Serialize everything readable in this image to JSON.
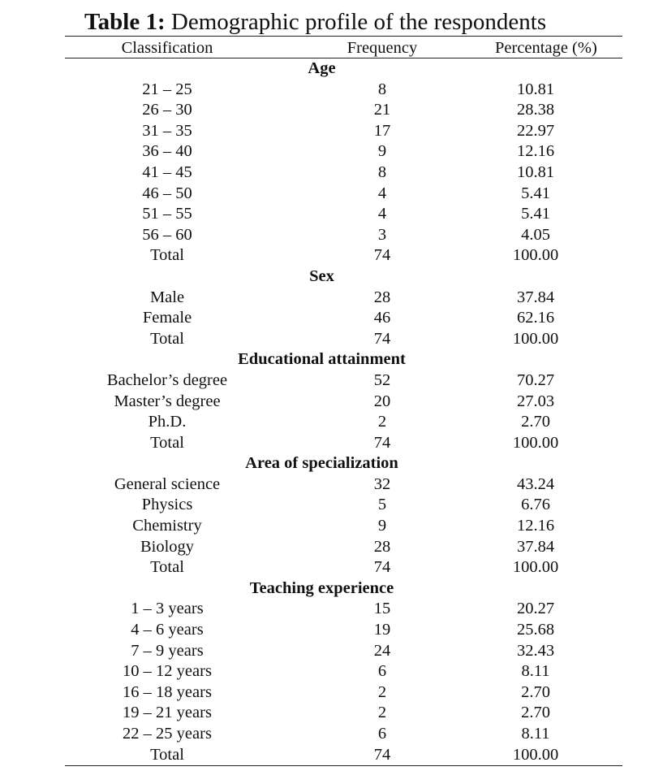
{
  "title": {
    "label": "Table 1:",
    "text": " Demographic profile of the respondents"
  },
  "columns": [
    "Classification",
    "Frequency",
    "Percentage (%)"
  ],
  "groups": [
    {
      "name": "Age",
      "rows": [
        [
          "21 – 25",
          "8",
          "10.81"
        ],
        [
          "26 – 30",
          "21",
          "28.38"
        ],
        [
          "31 – 35",
          "17",
          "22.97"
        ],
        [
          "36 – 40",
          "9",
          "12.16"
        ],
        [
          "41 – 45",
          "8",
          "10.81"
        ],
        [
          "46 – 50",
          "4",
          "5.41"
        ],
        [
          "51 – 55",
          "4",
          "5.41"
        ],
        [
          "56 – 60",
          "3",
          "4.05"
        ],
        [
          "Total",
          "74",
          "100.00"
        ]
      ]
    },
    {
      "name": "Sex",
      "rows": [
        [
          "Male",
          "28",
          "37.84"
        ],
        [
          "Female",
          "46",
          "62.16"
        ],
        [
          "Total",
          "74",
          "100.00"
        ]
      ]
    },
    {
      "name": "Educational attainment",
      "rows": [
        [
          "Bachelor’s degree",
          "52",
          "70.27"
        ],
        [
          "Master’s degree",
          "20",
          "27.03"
        ],
        [
          "Ph.D.",
          "2",
          "2.70"
        ],
        [
          "Total",
          "74",
          "100.00"
        ]
      ]
    },
    {
      "name": "Area of specialization",
      "rows": [
        [
          "General science",
          "32",
          "43.24"
        ],
        [
          "Physics",
          "5",
          "6.76"
        ],
        [
          "Chemistry",
          "9",
          "12.16"
        ],
        [
          "Biology",
          "28",
          "37.84"
        ],
        [
          "Total",
          "74",
          "100.00"
        ]
      ]
    },
    {
      "name": "Teaching experience",
      "rows": [
        [
          "1 – 3 years",
          "15",
          "20.27"
        ],
        [
          "4 – 6 years",
          "19",
          "25.68"
        ],
        [
          "7 – 9 years",
          "24",
          "32.43"
        ],
        [
          "10 – 12 years",
          "6",
          "8.11"
        ],
        [
          "16 – 18 years",
          "2",
          "2.70"
        ],
        [
          "19 – 21 years",
          "2",
          "2.70"
        ],
        [
          "22 – 25 years",
          "6",
          "8.11"
        ],
        [
          "Total",
          "74",
          "100.00"
        ]
      ]
    }
  ]
}
